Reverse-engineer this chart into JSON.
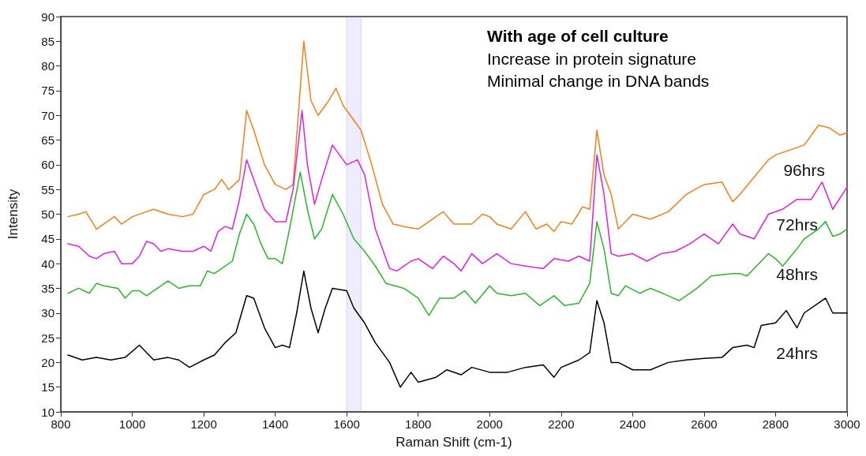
{
  "chart_data": {
    "type": "line",
    "title": "With age of cell culture",
    "annotations": [
      "Increase in protein signature",
      "Minimal change in DNA bands"
    ],
    "xlabel": "Raman Shift (cm-1)",
    "ylabel": "Intensity",
    "xlim": [
      800,
      3000
    ],
    "xticks": [
      800,
      1000,
      1200,
      1400,
      1600,
      1800,
      2000,
      2200,
      2400,
      2600,
      2800,
      3000
    ],
    "ylim": [
      10,
      90
    ],
    "yticks": [
      10,
      15,
      20,
      25,
      30,
      35,
      40,
      45,
      50,
      55,
      60,
      65,
      70,
      75,
      80,
      85,
      90
    ],
    "grid": false,
    "legend": false,
    "marker": "none",
    "line_style": "solid",
    "bands": [
      {
        "axis": "x",
        "from": 1600,
        "to": 1640,
        "color": "#6b6bf0"
      }
    ],
    "series": [
      {
        "name": "96hrs",
        "color": "#f07f1d",
        "x": [
          820,
          850,
          870,
          900,
          930,
          950,
          970,
          1000,
          1040,
          1060,
          1100,
          1140,
          1170,
          1200,
          1230,
          1250,
          1270,
          1300,
          1320,
          1340,
          1370,
          1400,
          1430,
          1450,
          1480,
          1500,
          1520,
          1550,
          1570,
          1590,
          1610,
          1640,
          1670,
          1700,
          1730,
          1760,
          1800,
          1830,
          1870,
          1900,
          1950,
          1980,
          2000,
          2020,
          2060,
          2100,
          2130,
          2160,
          2180,
          2200,
          2230,
          2260,
          2280,
          2300,
          2320,
          2340,
          2360,
          2400,
          2450,
          2500,
          2550,
          2600,
          2650,
          2680,
          2700,
          2740,
          2780,
          2800,
          2840,
          2880,
          2920,
          2950,
          2980,
          3000
        ],
        "values": [
          49.5,
          50,
          50.5,
          47,
          48.5,
          49.5,
          48,
          49.5,
          50.5,
          51,
          50,
          49.5,
          50,
          54,
          55,
          57,
          55,
          57,
          71,
          67,
          60,
          56,
          55,
          56,
          85,
          73,
          70,
          73,
          75.5,
          72,
          70,
          67,
          60,
          52,
          48,
          47.5,
          47,
          48.5,
          50.5,
          48,
          48,
          50,
          49.5,
          48,
          47,
          50.5,
          47,
          48,
          46.5,
          48.5,
          48,
          51.5,
          51,
          67,
          58,
          54,
          47,
          50,
          49,
          50.5,
          54,
          56,
          56.5,
          52.5,
          54,
          57.5,
          61,
          62,
          63,
          64,
          68,
          67.5,
          66,
          66.5
        ]
      },
      {
        "name": "72hrs",
        "color": "#e020e0",
        "x": [
          820,
          850,
          880,
          900,
          920,
          950,
          970,
          1000,
          1020,
          1040,
          1060,
          1080,
          1100,
          1140,
          1170,
          1200,
          1220,
          1240,
          1260,
          1280,
          1300,
          1320,
          1340,
          1370,
          1400,
          1430,
          1450,
          1475,
          1490,
          1510,
          1530,
          1560,
          1580,
          1600,
          1630,
          1650,
          1680,
          1720,
          1740,
          1780,
          1800,
          1840,
          1870,
          1900,
          1920,
          1950,
          1980,
          2020,
          2060,
          2100,
          2150,
          2180,
          2220,
          2250,
          2280,
          2300,
          2320,
          2340,
          2360,
          2400,
          2440,
          2480,
          2520,
          2560,
          2600,
          2640,
          2680,
          2700,
          2740,
          2780,
          2820,
          2860,
          2900,
          2930,
          2960,
          3000
        ],
        "values": [
          44,
          43.5,
          41.5,
          41,
          42,
          42.5,
          40,
          40,
          41.5,
          44.5,
          44,
          42.5,
          43,
          42.5,
          42.5,
          43.5,
          42.5,
          46.5,
          47.5,
          47,
          53,
          61,
          57,
          51,
          48.5,
          48.5,
          55,
          71,
          60,
          52,
          57,
          64,
          62,
          60,
          61,
          58,
          47,
          39,
          38.5,
          40.5,
          41,
          39,
          41.5,
          40,
          38.5,
          42,
          40,
          42,
          40,
          39.5,
          39,
          41,
          40.5,
          41.5,
          40.5,
          62,
          54,
          42,
          41.5,
          42,
          40.5,
          42,
          42.5,
          44,
          46,
          44,
          48,
          46,
          45,
          50,
          51,
          53,
          53,
          56.5,
          51,
          55.5
        ]
      },
      {
        "name": "48hrs",
        "color": "#2db32d",
        "x": [
          820,
          850,
          880,
          900,
          920,
          960,
          980,
          1000,
          1020,
          1040,
          1080,
          1100,
          1130,
          1160,
          1190,
          1210,
          1230,
          1250,
          1280,
          1300,
          1320,
          1340,
          1360,
          1380,
          1400,
          1420,
          1440,
          1470,
          1490,
          1510,
          1530,
          1560,
          1590,
          1620,
          1650,
          1680,
          1710,
          1760,
          1800,
          1830,
          1860,
          1900,
          1930,
          1960,
          2000,
          2020,
          2060,
          2100,
          2140,
          2180,
          2210,
          2250,
          2280,
          2300,
          2320,
          2340,
          2360,
          2380,
          2420,
          2450,
          2500,
          2530,
          2580,
          2620,
          2680,
          2700,
          2720,
          2760,
          2780,
          2800,
          2820,
          2860,
          2880,
          2920,
          2940,
          2960,
          2980,
          3000
        ],
        "values": [
          34,
          35,
          34,
          36,
          35.5,
          35,
          33,
          34.5,
          34.5,
          33.5,
          35.5,
          36.5,
          35,
          35.5,
          35.5,
          38.5,
          38,
          39,
          40.5,
          46,
          50,
          48,
          44,
          41,
          41,
          40,
          47,
          58.5,
          51,
          45,
          47,
          54,
          50,
          45,
          42.5,
          39.5,
          36,
          35,
          33,
          29.5,
          33,
          33,
          34.5,
          32,
          35.5,
          34,
          33.5,
          34,
          31.5,
          33.5,
          31.5,
          32,
          36,
          48.5,
          43,
          34,
          33.5,
          35.5,
          34,
          35,
          33.5,
          32.5,
          35,
          37.5,
          38,
          38,
          37.5,
          40.5,
          42,
          41,
          39.5,
          43,
          45,
          47,
          48.5,
          45.5,
          46,
          47
        ]
      },
      {
        "name": "24hrs",
        "color": "#000000",
        "x": [
          820,
          860,
          900,
          940,
          980,
          1020,
          1060,
          1100,
          1130,
          1160,
          1200,
          1230,
          1260,
          1290,
          1320,
          1340,
          1370,
          1400,
          1420,
          1440,
          1460,
          1480,
          1500,
          1520,
          1540,
          1560,
          1600,
          1620,
          1650,
          1680,
          1720,
          1750,
          1780,
          1800,
          1850,
          1880,
          1920,
          1950,
          2000,
          2050,
          2100,
          2150,
          2180,
          2200,
          2250,
          2280,
          2300,
          2320,
          2340,
          2360,
          2400,
          2450,
          2500,
          2550,
          2600,
          2650,
          2680,
          2720,
          2740,
          2760,
          2800,
          2830,
          2860,
          2880,
          2920,
          2940,
          2960,
          3000
        ],
        "values": [
          21.5,
          20.5,
          21,
          20.5,
          21,
          23.5,
          20.5,
          21,
          20.5,
          19,
          20.5,
          21.5,
          24,
          26,
          33.5,
          33,
          27,
          23,
          23.5,
          23,
          30,
          38.5,
          31,
          26,
          31,
          35,
          34.5,
          31,
          28,
          24,
          20,
          15,
          18,
          16,
          17,
          18.5,
          17.5,
          19,
          18,
          18,
          19,
          19.5,
          17,
          19,
          20.5,
          22,
          32.5,
          28,
          20,
          20,
          18.5,
          18.5,
          20,
          20.5,
          20.8,
          21,
          23,
          23.5,
          23,
          27.5,
          28,
          30.5,
          27,
          30,
          32,
          33,
          30,
          30
        ]
      }
    ]
  }
}
